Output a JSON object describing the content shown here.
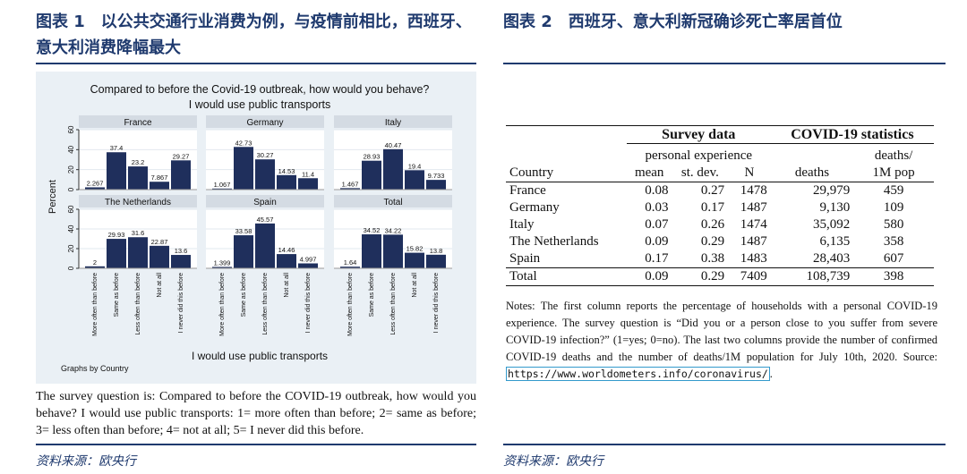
{
  "figure1": {
    "title": "图表 1　以公共交通行业消费为例，与疫情前相比，西班牙、意大利消费降幅最大",
    "source": "资料来源：欧央行",
    "survey_note": "The survey question is: Compared to before the COVID-19 outbreak, how would you behave? I would use public transports: 1= more often than before; 2= same as before; 3= less often than before; 4= not at all; 5= I never did this before."
  },
  "figure2": {
    "title": "图表 2　西班牙、意大利新冠确诊死亡率居首位",
    "source": "资料来源：欧央行",
    "table": {
      "group_headers": [
        "Survey data",
        "COVID-19 statistics"
      ],
      "sub_header_personal": "personal experience",
      "sub_header_deaths_per": "deaths/",
      "columns": [
        "Country",
        "mean",
        "st. dev.",
        "N",
        "deaths",
        "1M pop"
      ],
      "rows": [
        [
          "France",
          "0.08",
          "0.27",
          "1478",
          "29,979",
          "459"
        ],
        [
          "Germany",
          "0.03",
          "0.17",
          "1487",
          "9,130",
          "109"
        ],
        [
          "Italy",
          "0.07",
          "0.26",
          "1474",
          "35,092",
          "580"
        ],
        [
          "The Netherlands",
          "0.09",
          "0.29",
          "1487",
          "6,135",
          "358"
        ],
        [
          "Spain",
          "0.17",
          "0.38",
          "1483",
          "28,403",
          "607"
        ],
        [
          "Total",
          "0.09",
          "0.29",
          "7409",
          "108,739",
          "398"
        ]
      ]
    },
    "notes_text": "Notes: The first column reports the percentage of households with a personal COVID-19 experience. The survey question is “Did you or a person close to you suffer from severe COVID-19 infection?” (1=yes; 0=no). The last two columns provide the number of confirmed COVID-19 deaths and the number of deaths/1M population for July 10th, 2020. Source: ",
    "notes_url": "https://www.worldometers.info/coronavirus/",
    "notes_end": "."
  },
  "chart_data": {
    "type": "bar",
    "title": "Compared to before the Covid-19 outbreak, how would you behave?",
    "subtitle": "I would use public transports",
    "ylabel": "Percent",
    "xlabel": "I would use public transports",
    "note": "Graphs by Country",
    "ylim": [
      0,
      60
    ],
    "yticks": [
      0,
      20,
      40,
      60
    ],
    "bar_color": "#1f2f5c",
    "categories": [
      "More often than before",
      "Same as before",
      "Less often than before",
      "Not at all",
      "I never did this before"
    ],
    "series": [
      {
        "name": "France",
        "values": [
          2.267,
          37.4,
          23.2,
          7.867,
          29.27
        ],
        "labels": [
          "2.267",
          "37.4",
          "23.2",
          "7.867",
          "29.27"
        ]
      },
      {
        "name": "Germany",
        "values": [
          1.067,
          42.73,
          30.27,
          14.53,
          11.4
        ],
        "labels": [
          "1.067",
          "42.73",
          "30.27",
          "14.53",
          "11.4"
        ]
      },
      {
        "name": "Italy",
        "values": [
          1.467,
          28.93,
          40.47,
          19.4,
          9.733
        ],
        "labels": [
          "1.467",
          "28.93",
          "40.47",
          "19.4",
          "9.733"
        ]
      },
      {
        "name": "The Netherlands",
        "values": [
          2,
          29.93,
          31.6,
          22.87,
          13.6
        ],
        "labels": [
          "2",
          "29.93",
          "31.6",
          "22.87",
          "13.6"
        ]
      },
      {
        "name": "Spain",
        "values": [
          1.399,
          33.58,
          45.57,
          14.46,
          4.997
        ],
        "labels": [
          "1.399",
          "33.58",
          "45.57",
          "14.46",
          "4.997"
        ]
      },
      {
        "name": "Total",
        "values": [
          1.64,
          34.52,
          34.22,
          15.82,
          13.8
        ],
        "labels": [
          "1.64",
          "34.52",
          "34.22",
          "15.82",
          "13.8"
        ]
      }
    ]
  }
}
